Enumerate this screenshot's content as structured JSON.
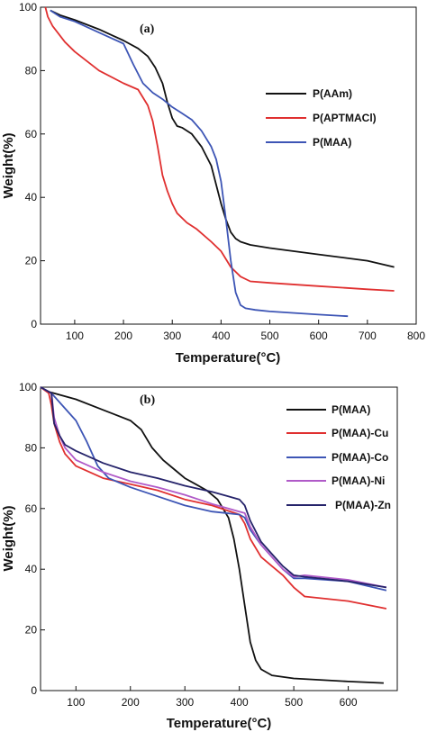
{
  "chart_data": [
    {
      "type": "line",
      "panel_label": "(a)",
      "xlabel": "Temperature(°C)",
      "ylabel": "Weight(%)",
      "xlim": [
        30,
        800
      ],
      "ylim": [
        0,
        100
      ],
      "xticks": [
        100,
        200,
        300,
        400,
        500,
        600,
        700,
        800
      ],
      "yticks": [
        0,
        20,
        40,
        60,
        80,
        100
      ],
      "legend_position": "right",
      "series": [
        {
          "name": "P(AAm)",
          "color": "#111111",
          "x": [
            50,
            70,
            100,
            150,
            200,
            230,
            250,
            265,
            280,
            290,
            300,
            310,
            320,
            340,
            360,
            380,
            400,
            410,
            420,
            430,
            440,
            460,
            500,
            600,
            700,
            755
          ],
          "y": [
            99,
            97.5,
            96,
            93,
            89.5,
            87,
            84.5,
            81,
            76,
            70,
            65,
            62.5,
            62,
            60,
            56,
            50,
            38,
            33,
            29,
            27,
            26,
            25,
            24,
            22,
            20,
            18
          ]
        },
        {
          "name": "P(APTMACl)",
          "color": "#e03030",
          "x": [
            40,
            45,
            55,
            80,
            100,
            150,
            200,
            230,
            250,
            260,
            270,
            280,
            290,
            300,
            310,
            330,
            350,
            380,
            400,
            420,
            440,
            460,
            500,
            600,
            700,
            755
          ],
          "y": [
            100,
            97,
            94,
            89,
            86,
            80,
            76,
            74,
            69,
            64,
            56,
            47,
            42,
            38,
            35,
            32,
            30,
            26,
            23,
            18,
            15,
            13.5,
            13,
            12,
            11,
            10.5
          ]
        },
        {
          "name": "P(MAA)",
          "color": "#3d55b5",
          "x": [
            50,
            70,
            100,
            150,
            200,
            220,
            240,
            260,
            280,
            300,
            320,
            340,
            360,
            380,
            390,
            400,
            410,
            420,
            430,
            440,
            450,
            470,
            500,
            600,
            660
          ],
          "y": [
            99,
            97,
            95.5,
            92,
            88.5,
            82,
            76,
            73,
            71,
            68.5,
            66.5,
            64.5,
            61,
            56,
            52,
            45,
            33,
            20,
            10,
            6,
            5,
            4.5,
            4,
            3,
            2.5
          ]
        }
      ]
    },
    {
      "type": "line",
      "panel_label": "(b)",
      "xlabel": "Temperature(°C)",
      "ylabel": "Weight(%)",
      "xlim": [
        35,
        690
      ],
      "ylim": [
        0,
        100
      ],
      "xticks": [
        100,
        200,
        300,
        400,
        500,
        600
      ],
      "yticks": [
        0,
        20,
        40,
        60,
        80,
        100
      ],
      "legend_position": "right",
      "series": [
        {
          "name": "P(MAA)",
          "color": "#111111",
          "x": [
            35,
            50,
            100,
            150,
            200,
            220,
            240,
            260,
            280,
            300,
            320,
            340,
            360,
            380,
            390,
            400,
            410,
            420,
            430,
            440,
            460,
            500,
            600,
            665
          ],
          "y": [
            100,
            98.5,
            96,
            92.5,
            89,
            86,
            80,
            76,
            73,
            70,
            68,
            66,
            63,
            57,
            50,
            40,
            28,
            16,
            10,
            7,
            5,
            4,
            3,
            2.5
          ]
        },
        {
          "name": "P(MAA)-Cu",
          "color": "#e03030",
          "x": [
            35,
            50,
            55,
            60,
            70,
            80,
            100,
            150,
            200,
            250,
            300,
            350,
            400,
            410,
            420,
            440,
            460,
            480,
            500,
            520,
            600,
            670
          ],
          "y": [
            100,
            98,
            94,
            88,
            82,
            78,
            74,
            70,
            68,
            66,
            63,
            61,
            58,
            55,
            50,
            44,
            41,
            38,
            34,
            31,
            29.5,
            27
          ]
        },
        {
          "name": "P(MAA)-Co",
          "color": "#3d55b5",
          "x": [
            35,
            55,
            80,
            100,
            120,
            140,
            160,
            200,
            250,
            300,
            350,
            400,
            410,
            420,
            440,
            460,
            480,
            500,
            520,
            600,
            670
          ],
          "y": [
            100,
            98,
            93,
            89,
            82,
            74,
            70,
            67,
            64,
            61,
            59,
            58,
            57,
            53,
            48,
            44,
            40,
            37,
            37,
            36,
            33
          ]
        },
        {
          "name": "P(MAA)-Ni",
          "color": "#b05ac8",
          "x": [
            35,
            55,
            60,
            70,
            80,
            100,
            150,
            200,
            250,
            300,
            350,
            400,
            410,
            420,
            440,
            460,
            480,
            500,
            520,
            600,
            670
          ],
          "y": [
            100,
            98,
            90,
            84,
            80,
            76,
            72,
            69,
            67,
            64.5,
            61.5,
            59,
            58.5,
            54,
            48,
            44,
            40,
            37.5,
            38,
            36.5,
            34
          ]
        },
        {
          "name": "P(MAA)-Zn",
          "color": "#25236a",
          "x": [
            35,
            55,
            60,
            70,
            80,
            100,
            150,
            200,
            250,
            300,
            350,
            400,
            410,
            420,
            440,
            460,
            480,
            500,
            520,
            600,
            670
          ],
          "y": [
            100,
            98,
            88,
            84,
            81,
            79,
            75,
            72,
            70,
            67.5,
            65.5,
            63,
            61,
            56,
            49,
            45,
            41,
            38,
            37.5,
            36,
            34
          ]
        }
      ]
    }
  ]
}
